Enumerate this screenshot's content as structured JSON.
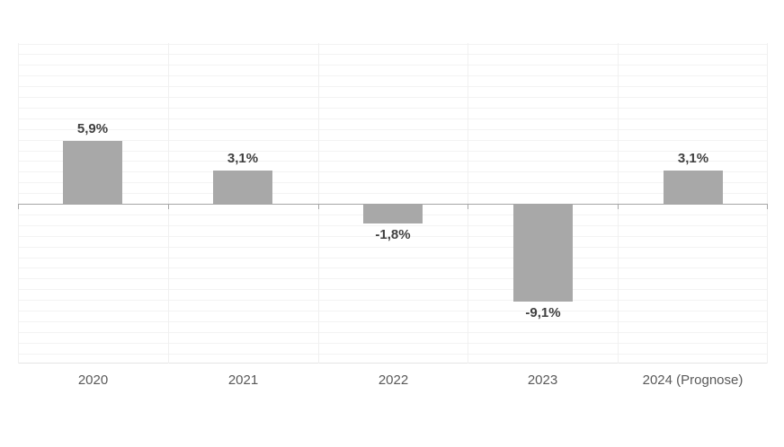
{
  "chart_data": {
    "type": "bar",
    "title": "",
    "xlabel": "",
    "ylabel": "",
    "categories": [
      "2020",
      "2021",
      "2022",
      "2023",
      "2024 (Prognose)"
    ],
    "values": [
      5.9,
      3.1,
      -1.8,
      -9.1,
      3.1
    ],
    "value_labels": [
      "5,9%",
      "3,1%",
      "-1,8%",
      "-9,1%",
      "3,1%"
    ],
    "ylim": [
      -15,
      15
    ],
    "grid_step_pct": 1,
    "grid": "on",
    "legend_position": "none",
    "axis_tick_labels_y": [],
    "colors": {
      "bar": "#a8a8a8",
      "zero_axis": "#a6a6a6",
      "gridline": "#f3f3f3",
      "vertical_gridline": "#f0f0f0",
      "value_label": "#404040",
      "category_label": "#595959",
      "background": "#ffffff"
    }
  }
}
